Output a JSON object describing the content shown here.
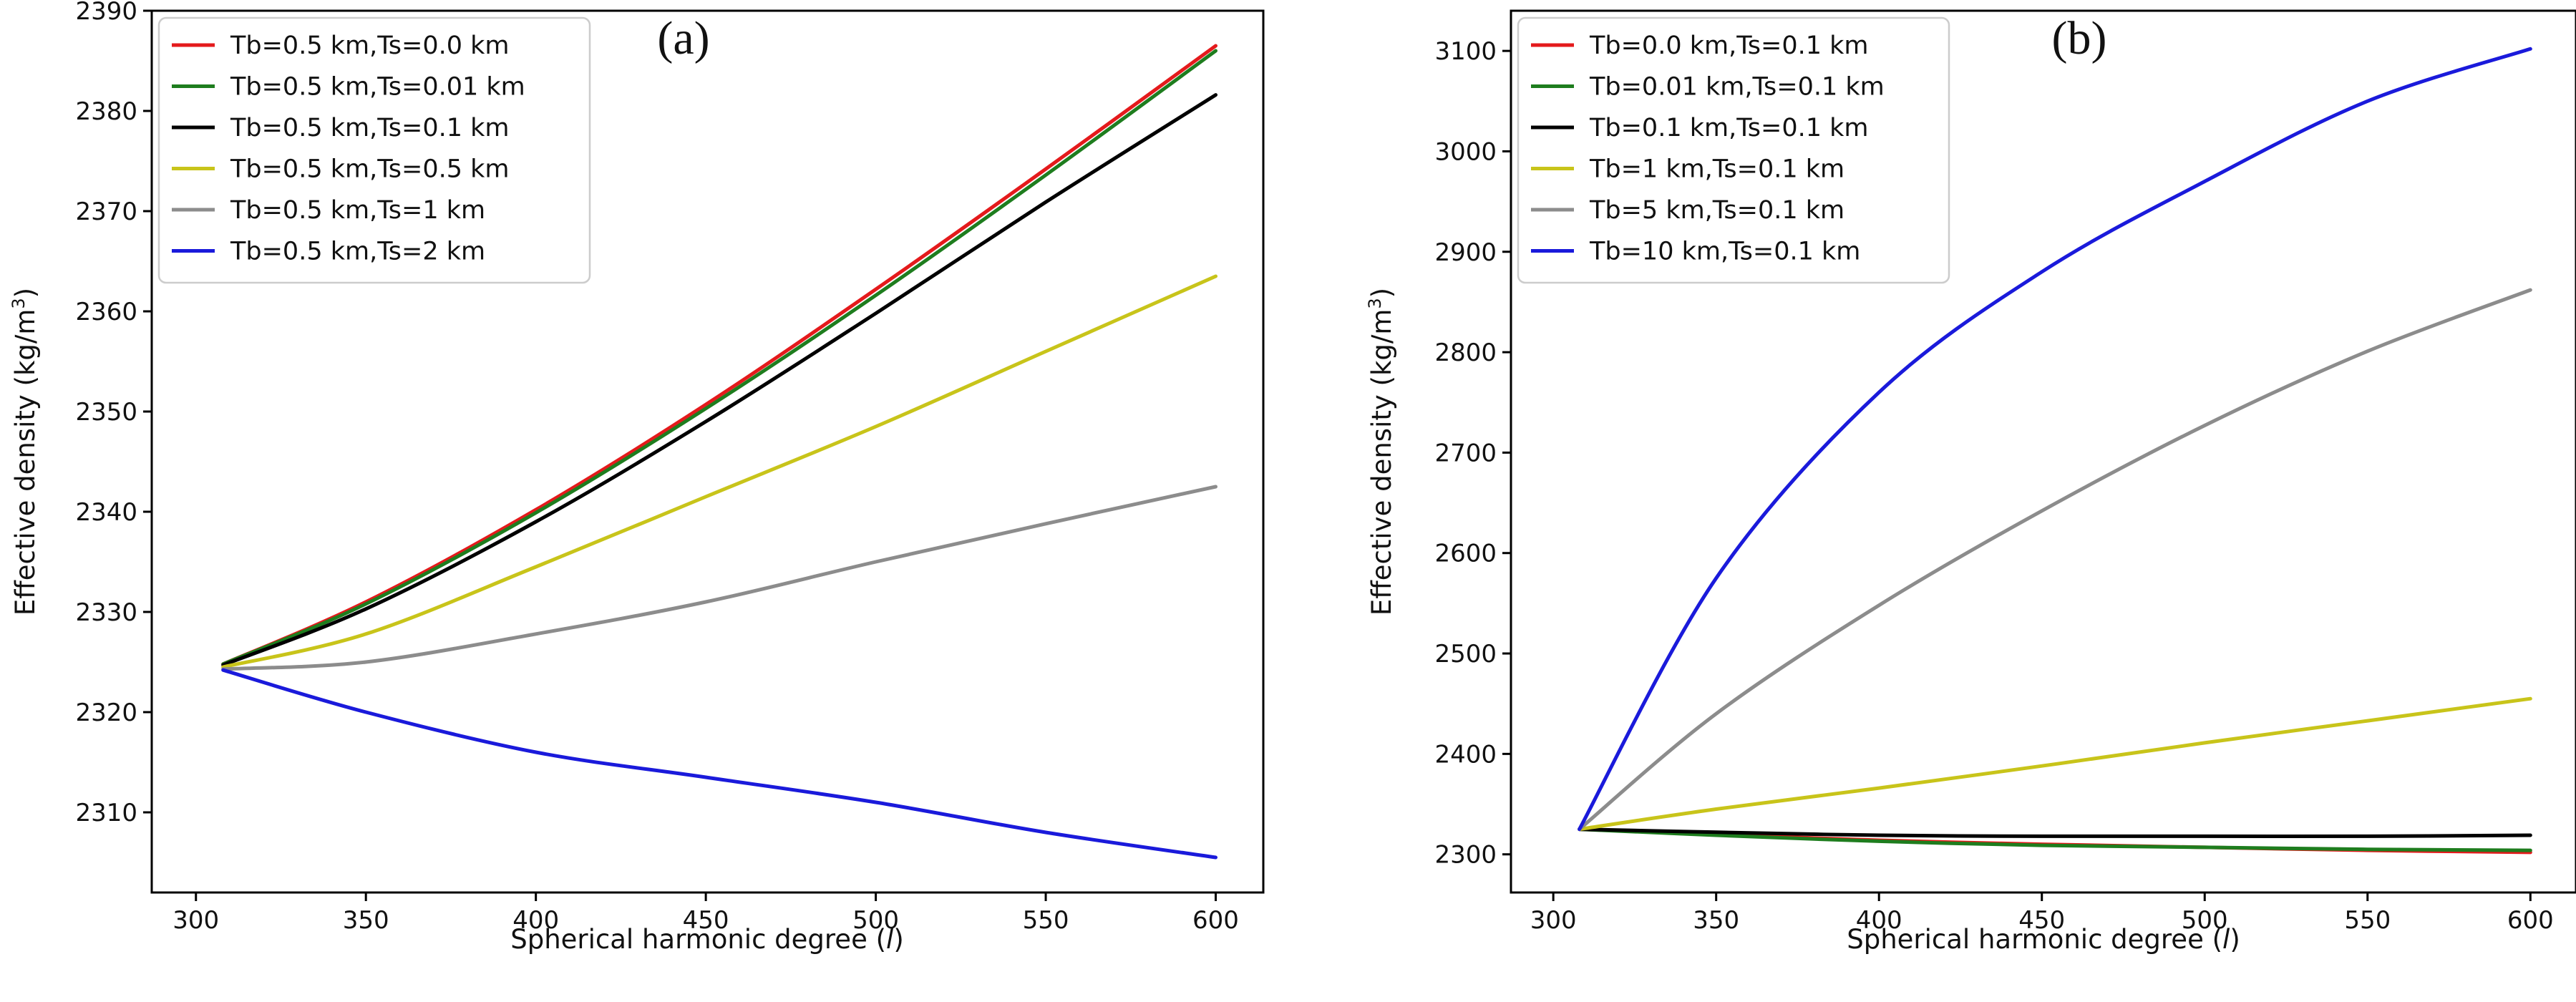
{
  "chart_data": [
    {
      "type": "line",
      "panel_label": "(a)",
      "title": "",
      "xlabel": "Spherical harmonic degree",
      "xlabel_var": "l",
      "ylabel": "Effective density",
      "ylabel_unit_base": "kg/m",
      "ylabel_unit_exp": "3",
      "xlim": [
        287,
        614
      ],
      "ylim": [
        2302,
        2390
      ],
      "xticks": [
        300,
        350,
        400,
        450,
        500,
        550,
        600
      ],
      "yticks": [
        2310,
        2320,
        2330,
        2340,
        2350,
        2360,
        2370,
        2380,
        2390
      ],
      "legend_position": "upper-left",
      "x": [
        308,
        350,
        400,
        450,
        500,
        550,
        600
      ],
      "series": [
        {
          "name": "Tb=0.5 km,Ts=0.0 km",
          "color": "#e41a1c",
          "values": [
            2324.8,
            2331.0,
            2340.2,
            2350.7,
            2362.2,
            2374.2,
            2386.5
          ]
        },
        {
          "name": "Tb=0.5 km,Ts=0.01 km",
          "color": "#1e7d1e",
          "values": [
            2324.8,
            2330.8,
            2339.9,
            2350.3,
            2361.6,
            2373.6,
            2386.0
          ]
        },
        {
          "name": "Tb=0.5 km,Ts=0.1 km",
          "color": "#000000",
          "values": [
            2324.7,
            2330.3,
            2339.0,
            2349.0,
            2359.8,
            2370.9,
            2381.6
          ]
        },
        {
          "name": "Tb=0.5 km,Ts=0.5 km",
          "color": "#c8c41a",
          "values": [
            2324.5,
            2327.8,
            2334.5,
            2341.5,
            2348.5,
            2356.0,
            2363.5
          ]
        },
        {
          "name": "Tb=0.5 km,Ts=1 km",
          "color": "#8c8c8c",
          "values": [
            2324.3,
            2325.0,
            2327.8,
            2331.0,
            2335.0,
            2338.8,
            2342.5
          ]
        },
        {
          "name": "Tb=0.5 km,Ts=2 km",
          "color": "#1a1adb",
          "values": [
            2324.2,
            2320.0,
            2316.0,
            2313.5,
            2311.0,
            2308.0,
            2305.5
          ]
        }
      ]
    },
    {
      "type": "line",
      "panel_label": "(b)",
      "title": "",
      "xlabel": "Spherical harmonic degree",
      "xlabel_var": "l",
      "ylabel": "Effective density",
      "ylabel_unit_base": "kg/m",
      "ylabel_unit_exp": "3",
      "xlim": [
        287,
        614
      ],
      "ylim": [
        2262,
        3140
      ],
      "xticks": [
        300,
        350,
        400,
        450,
        500,
        550,
        600
      ],
      "yticks": [
        2300,
        2400,
        2500,
        2600,
        2700,
        2800,
        2900,
        3000,
        3100
      ],
      "legend_position": "upper-left",
      "x": [
        308,
        350,
        400,
        450,
        500,
        550,
        600
      ],
      "series": [
        {
          "name": "Tb=0.0 km,Ts=0.1 km",
          "color": "#e41a1c",
          "values": [
            2325,
            2320,
            2314,
            2310,
            2307,
            2304,
            2302
          ]
        },
        {
          "name": "Tb=0.01 km,Ts=0.1 km",
          "color": "#1e7d1e",
          "values": [
            2325,
            2319,
            2313,
            2309,
            2307,
            2305,
            2304
          ]
        },
        {
          "name": "Tb=0.1 km,Ts=0.1 km",
          "color": "#000000",
          "values": [
            2325,
            2322,
            2319,
            2318,
            2318,
            2318,
            2319
          ]
        },
        {
          "name": "Tb=1 km,Ts=0.1 km",
          "color": "#c8c41a",
          "values": [
            2325,
            2345,
            2366,
            2388,
            2411,
            2433,
            2455
          ]
        },
        {
          "name": "Tb=5 km,Ts=0.1 km",
          "color": "#8c8c8c",
          "values": [
            2325,
            2440,
            2548,
            2642,
            2727,
            2801,
            2862
          ]
        },
        {
          "name": "Tb=10 km,Ts=0.1 km",
          "color": "#1a1adb",
          "values": [
            2325,
            2575,
            2760,
            2880,
            2970,
            3050,
            3102
          ]
        }
      ]
    }
  ]
}
